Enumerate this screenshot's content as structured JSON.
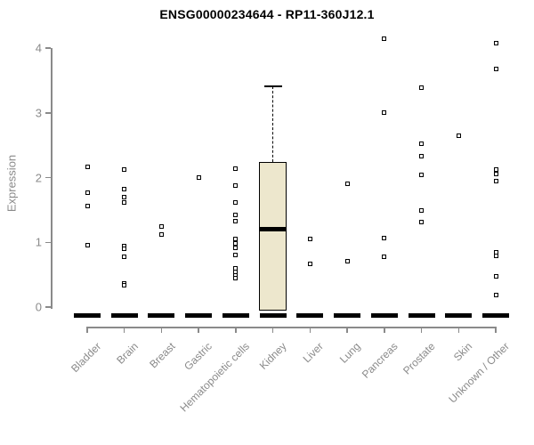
{
  "chart_data": {
    "type": "scatter",
    "subtype": "strip-plot with single box-and-whisker overlay (gene expression per tissue)",
    "title": "ENSG00000234644 - RP11-360J12.1",
    "ylabel": "Expression",
    "xlabel": "",
    "ylim": [
      0,
      4
    ],
    "yticks": [
      0,
      1,
      2,
      3,
      4
    ],
    "grid": false,
    "legend": "none",
    "marker_shape": "small-black-open-square",
    "categories": [
      "Bladder",
      "Brain",
      "Breast",
      "Gastric",
      "Hematopoietic cells",
      "Kidney",
      "Liver",
      "Lung",
      "Pancreas",
      "Prostate",
      "Skin",
      "Unknown / Other"
    ],
    "series": [
      {
        "name": "Bladder",
        "points": [
          2.16,
          1.76,
          1.56,
          0.95
        ],
        "zero_stack_dash": true
      },
      {
        "name": "Brain",
        "points": [
          2.13,
          1.82,
          1.7,
          1.61,
          0.94,
          0.9,
          0.77,
          0.37,
          0.33
        ],
        "zero_stack_dash": true
      },
      {
        "name": "Breast",
        "points": [
          1.24,
          1.12
        ],
        "zero_stack_dash": true
      },
      {
        "name": "Gastric",
        "points": [
          2.0
        ],
        "zero_stack_dash": true
      },
      {
        "name": "Hematopoietic cells",
        "points": [
          2.14,
          1.88,
          1.61,
          1.42,
          1.33,
          1.05,
          0.98,
          0.92,
          0.8,
          0.6,
          0.54,
          0.49,
          0.45
        ],
        "zero_stack_dash": true
      },
      {
        "name": "Kidney",
        "points": [],
        "zero_stack_dash": true
      },
      {
        "name": "Liver",
        "points": [
          1.05,
          0.66
        ],
        "zero_stack_dash": true
      },
      {
        "name": "Lung",
        "points": [
          1.91,
          0.71
        ],
        "zero_stack_dash": true
      },
      {
        "name": "Pancreas",
        "points": [
          4.15,
          3.0,
          1.06,
          0.78
        ],
        "zero_stack_dash": true
      },
      {
        "name": "Prostate",
        "points": [
          3.39,
          2.52,
          2.33,
          2.04,
          1.49,
          1.31
        ],
        "zero_stack_dash": true
      },
      {
        "name": "Skin",
        "points": [
          2.64
        ],
        "zero_stack_dash": true
      },
      {
        "name": "Unknown / Other",
        "points": [
          4.08,
          3.68,
          2.12,
          2.06,
          1.95,
          0.84,
          0.79,
          0.48,
          0.18
        ],
        "zero_stack_dash": true
      }
    ],
    "box": {
      "category": "Kidney",
      "q1": 0.0,
      "median": 1.2,
      "q3": 2.24,
      "whisker_low": 0.0,
      "whisker_high": 3.41
    }
  },
  "colors": {
    "background": "#ffffff",
    "title_text": "#000000",
    "axis": "#8a8a8a",
    "tick_text": "#8a8a8a",
    "marker": "#000000",
    "zero_dash": "#000000",
    "box_fill": "#ede7cd",
    "box_border": "#000000",
    "median_line": "#000000"
  }
}
